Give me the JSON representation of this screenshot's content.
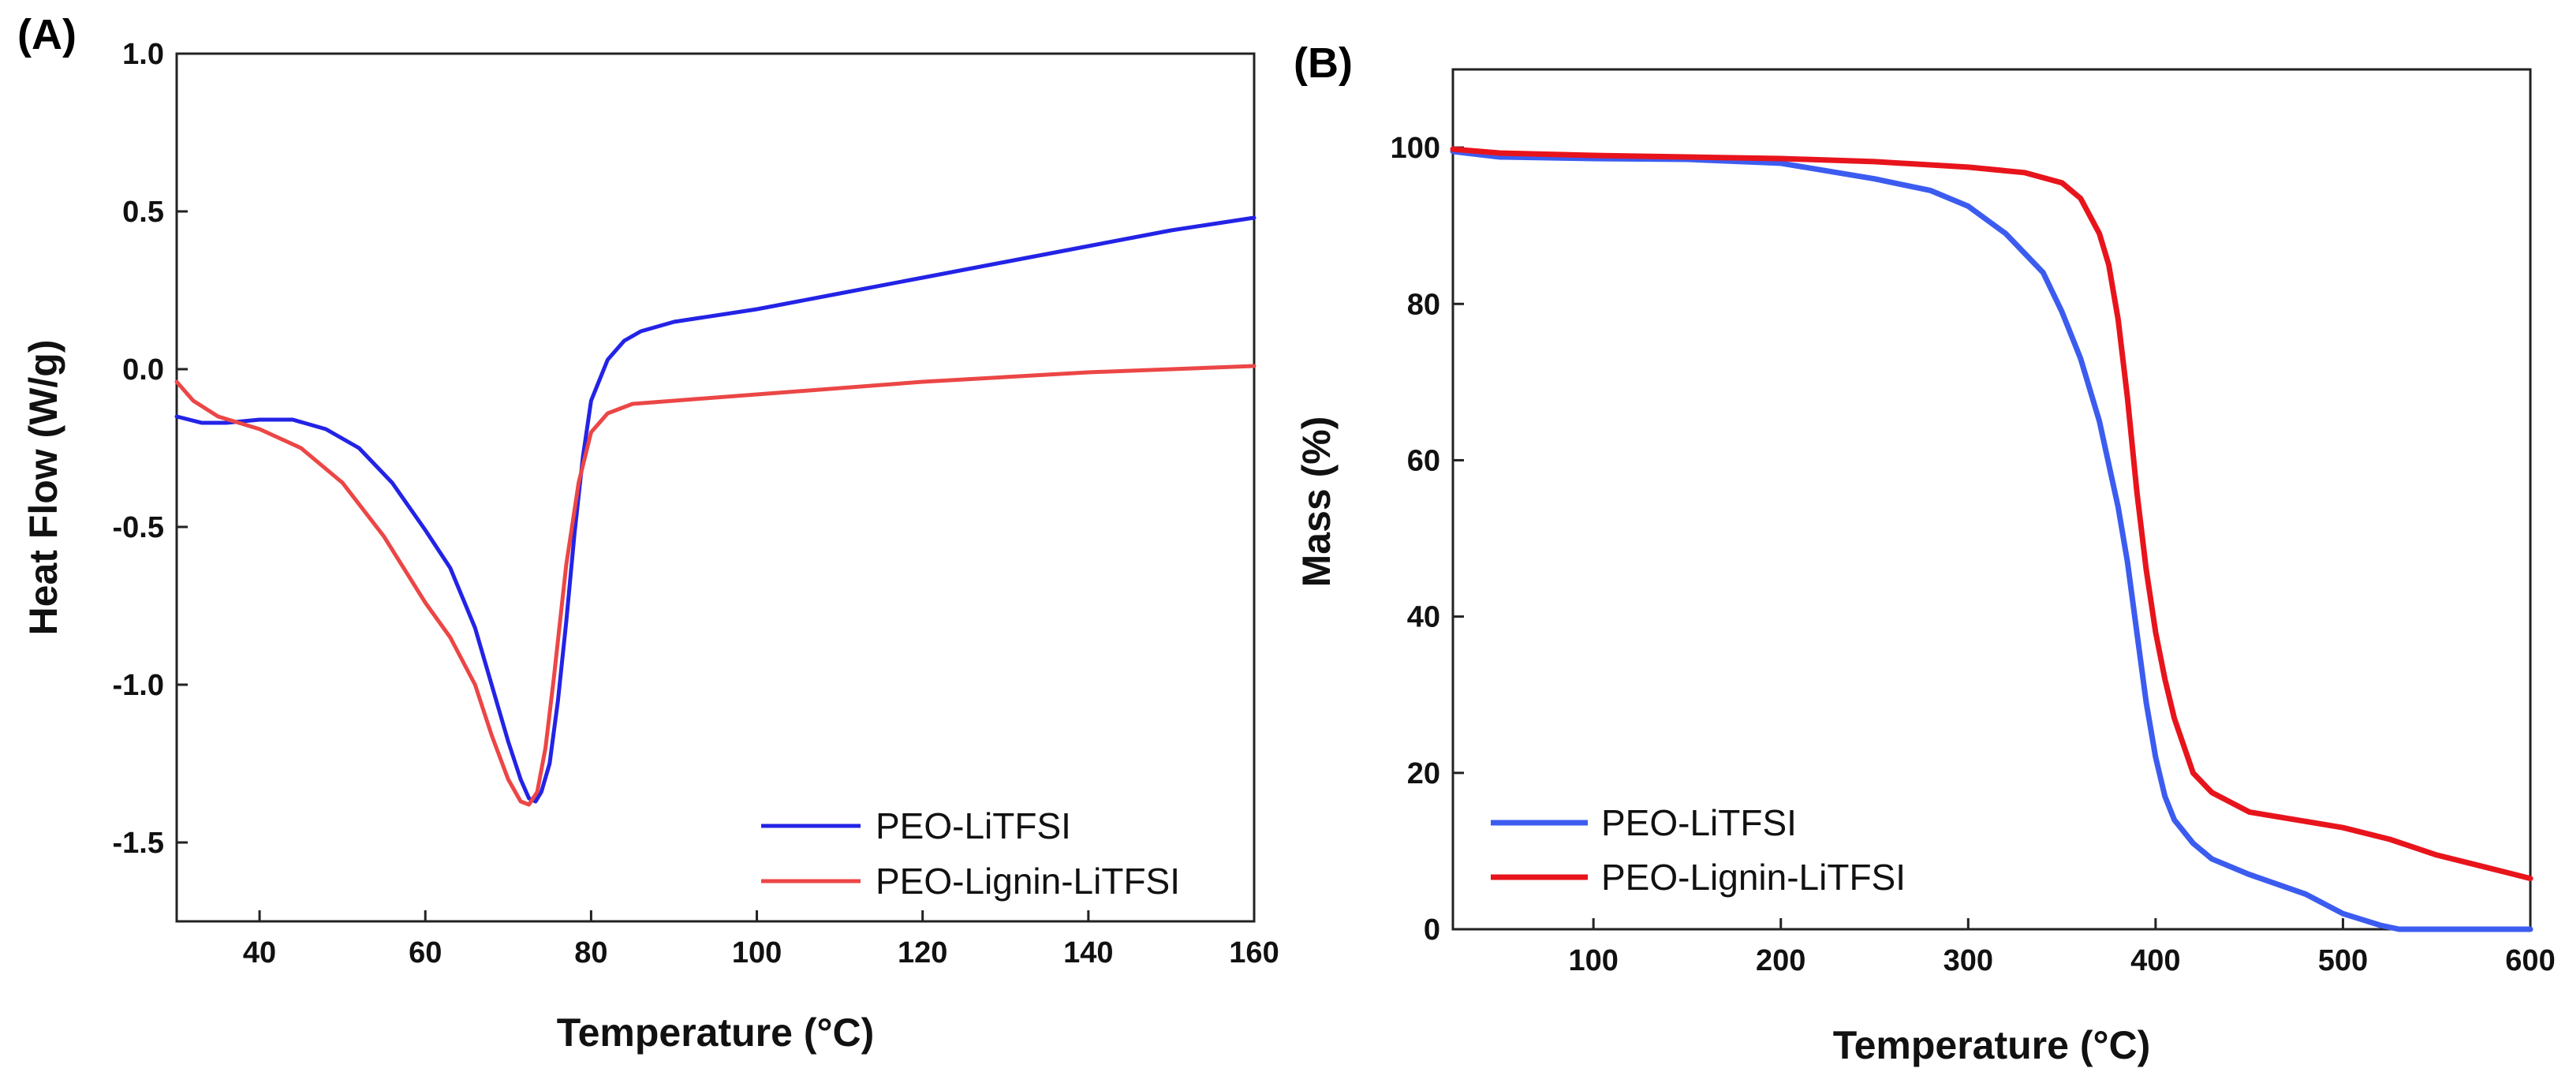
{
  "chart_data": [
    {
      "id": "A",
      "type": "line",
      "panel_label": "(A)",
      "title": "",
      "xlabel": "Temperature (°C)",
      "ylabel": "Heat Flow (W/g)",
      "xlim": [
        30,
        160
      ],
      "ylim": [
        -1.75,
        1.0
      ],
      "xticks": [
        40,
        60,
        80,
        100,
        120,
        140,
        160
      ],
      "yticks": [
        -1.5,
        -1.0,
        -0.5,
        0.0,
        0.5,
        1.0
      ],
      "xtick_labels": [
        "40",
        "60",
        "80",
        "100",
        "120",
        "140",
        "160"
      ],
      "ytick_labels": [
        "-1.5",
        "-1.0",
        "-0.5",
        "0.0",
        "0.5",
        "1.0"
      ],
      "grid": false,
      "legend_position": "bottom-right",
      "series": [
        {
          "name": "PEO-LiTFSI",
          "color": "#2323e6",
          "x": [
            30,
            33,
            36,
            40,
            44,
            48,
            52,
            56,
            60,
            63,
            66,
            68,
            70,
            71.5,
            72.5,
            73.3,
            74,
            75,
            76,
            77,
            78,
            79,
            80,
            82,
            84,
            86,
            90,
            100,
            110,
            120,
            130,
            140,
            150,
            160
          ],
          "y": [
            -0.15,
            -0.17,
            -0.17,
            -0.16,
            -0.16,
            -0.19,
            -0.25,
            -0.36,
            -0.51,
            -0.63,
            -0.82,
            -1.0,
            -1.18,
            -1.3,
            -1.36,
            -1.37,
            -1.34,
            -1.25,
            -1.05,
            -0.8,
            -0.52,
            -0.28,
            -0.1,
            0.03,
            0.09,
            0.12,
            0.15,
            0.19,
            0.24,
            0.29,
            0.34,
            0.39,
            0.44,
            0.48
          ]
        },
        {
          "name": "PEO-Lignin-LiTFSI",
          "color": "#ec4646",
          "x": [
            30,
            32,
            35,
            40,
            45,
            50,
            55,
            60,
            63,
            66,
            68,
            70,
            71.5,
            72.5,
            73.5,
            74.5,
            75.5,
            77,
            78.5,
            80,
            82,
            85,
            90,
            100,
            120,
            140,
            160
          ],
          "y": [
            -0.04,
            -0.1,
            -0.15,
            -0.19,
            -0.25,
            -0.36,
            -0.53,
            -0.74,
            -0.85,
            -1.0,
            -1.16,
            -1.3,
            -1.37,
            -1.38,
            -1.34,
            -1.2,
            -0.98,
            -0.62,
            -0.36,
            -0.2,
            -0.14,
            -0.11,
            -0.1,
            -0.08,
            -0.04,
            -0.01,
            0.01
          ]
        }
      ]
    },
    {
      "id": "B",
      "type": "line",
      "panel_label": "(B)",
      "title": "",
      "xlabel": "Temperature (°C)",
      "ylabel": "Mass (%)",
      "xlim": [
        25,
        600
      ],
      "ylim": [
        0,
        110
      ],
      "xticks": [
        100,
        200,
        300,
        400,
        500,
        600
      ],
      "yticks": [
        0,
        20,
        40,
        60,
        80,
        100
      ],
      "xtick_labels": [
        "100",
        "200",
        "300",
        "400",
        "500",
        "600"
      ],
      "ytick_labels": [
        "0",
        "20",
        "40",
        "60",
        "80",
        "100"
      ],
      "grid": false,
      "legend_position": "bottom-left",
      "series": [
        {
          "name": "PEO-LiTFSI",
          "color": "#3c5cf0",
          "x": [
            25,
            50,
            100,
            150,
            200,
            250,
            280,
            300,
            320,
            340,
            350,
            360,
            370,
            380,
            385,
            390,
            395,
            400,
            405,
            410,
            420,
            430,
            450,
            480,
            500,
            520,
            530,
            550,
            600
          ],
          "y": [
            99.5,
            98.8,
            98.6,
            98.5,
            98,
            96,
            94.5,
            92.5,
            89,
            84,
            79,
            73,
            65,
            54,
            47,
            38,
            29,
            22,
            17,
            14,
            11,
            9,
            7,
            4.5,
            2,
            0.5,
            0,
            0,
            0
          ]
        },
        {
          "name": "PEO-Lignin-LiTFSI",
          "color": "#e8141c",
          "x": [
            25,
            50,
            100,
            150,
            200,
            250,
            300,
            330,
            350,
            360,
            370,
            375,
            380,
            385,
            390,
            395,
            400,
            405,
            410,
            420,
            430,
            450,
            475,
            500,
            525,
            550,
            575,
            600
          ],
          "y": [
            99.8,
            99.3,
            99,
            98.8,
            98.6,
            98.2,
            97.5,
            96.8,
            95.5,
            93.5,
            89,
            85,
            78,
            68,
            56,
            46,
            38,
            32,
            27,
            20,
            17.5,
            15,
            14,
            13,
            11.5,
            9.5,
            8,
            6.5
          ]
        }
      ]
    }
  ]
}
